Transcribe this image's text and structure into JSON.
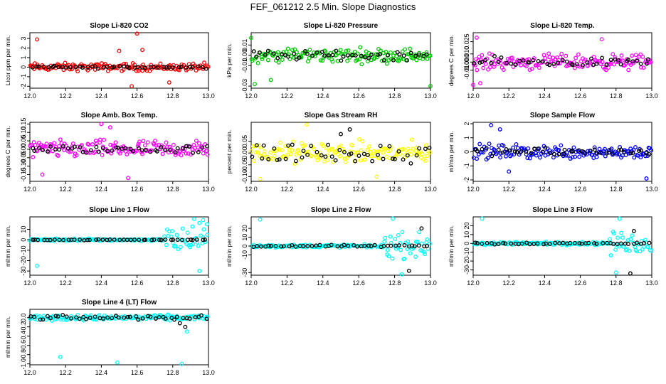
{
  "page": {
    "title": "FEF_061212  2.5 Min. Slope Diagnostics"
  },
  "chart_data": [
    {
      "type": "scatter",
      "title": "Slope Li-820 CO2",
      "xlabel": "",
      "ylabel": "Licor ppm per min.",
      "xlim": [
        12.0,
        13.0
      ],
      "ylim": [
        -2.2,
        3.6
      ],
      "ytick_values": [
        -2,
        -1,
        0,
        1,
        2,
        3
      ],
      "ytick_labels": [
        "-2",
        "-1",
        "0",
        "1",
        "2",
        "3"
      ],
      "xtick_values": [
        12.0,
        12.2,
        12.4,
        12.6,
        12.8,
        13.0
      ],
      "xtick_labels": [
        "12.0",
        "12.2",
        "12.4",
        "12.6",
        "12.8",
        "13.0"
      ],
      "grid": false,
      "legend": "none",
      "series": [
        {
          "color": "#ff0000",
          "center": 0.0,
          "spread": 0.35,
          "outliers": [
            [
              12.04,
              2.9
            ],
            [
              12.6,
              3.5
            ],
            [
              12.57,
              -2.0
            ],
            [
              12.78,
              -1.6
            ],
            [
              12.5,
              1.7
            ],
            [
              12.63,
              1.8
            ]
          ]
        },
        {
          "color": "#000000",
          "center": 0.0,
          "spread": 0.12,
          "outliers": []
        }
      ]
    },
    {
      "type": "scatter",
      "title": "Slope Li-820 Pressure",
      "xlabel": "",
      "ylabel": "kPa per min.",
      "xlim": [
        12.0,
        13.0
      ],
      "ylim": [
        -0.032,
        0.022
      ],
      "ytick_values": [
        -0.03,
        -0.01,
        0.0,
        0.01
      ],
      "ytick_labels": [
        "-0.03",
        "-0.01",
        "0.00",
        "0.01"
      ],
      "xtick_values": [
        12.0,
        12.2,
        12.4,
        12.6,
        12.8,
        13.0
      ],
      "xtick_labels": [
        "12.0",
        "12.2",
        "12.4",
        "12.6",
        "12.8",
        "13.0"
      ],
      "grid": false,
      "legend": "none",
      "series": [
        {
          "color": "#00cc00",
          "center": 0.0,
          "spread": 0.006,
          "outliers": [
            [
              12.0,
              0.017
            ],
            [
              12.02,
              -0.028
            ],
            [
              13.0,
              -0.03
            ],
            [
              12.11,
              -0.024
            ]
          ]
        },
        {
          "color": "#000000",
          "center": 0.0,
          "spread": 0.004,
          "outliers": []
        }
      ]
    },
    {
      "type": "scatter",
      "title": "Slope Li-820 Temp.",
      "xlabel": "",
      "ylabel": "degrees C per min.",
      "xlim": [
        12.0,
        13.0
      ],
      "ylim": [
        -0.032,
        0.036
      ],
      "ytick_values": [
        -0.01,
        0.0,
        0.01,
        0.025
      ],
      "ytick_labels": [
        "-0.010",
        "0.000",
        "0.010",
        "0.025"
      ],
      "xtick_values": [
        12.0,
        12.2,
        12.4,
        12.6,
        12.8,
        13.0
      ],
      "xtick_labels": [
        "12.0",
        "12.2",
        "12.4",
        "12.6",
        "12.8",
        "13.0"
      ],
      "grid": false,
      "legend": "none",
      "series": [
        {
          "color": "#ff00ff",
          "center": 0.0,
          "spread": 0.008,
          "outliers": [
            [
              12.02,
              0.03
            ],
            [
              12.0,
              -0.028
            ],
            [
              12.04,
              -0.026
            ],
            [
              12.72,
              0.028
            ]
          ]
        },
        {
          "color": "#000000",
          "center": 0.0,
          "spread": 0.005,
          "outliers": []
        }
      ]
    },
    {
      "type": "scatter",
      "title": "Slope Amb. Box Temp.",
      "xlabel": "",
      "ylabel": "degrees C per min.",
      "xlim": [
        12.0,
        13.0
      ],
      "ylim": [
        -0.19,
        0.16
      ],
      "ytick_values": [
        -0.15,
        -0.1,
        -0.05,
        0.0,
        0.05,
        0.1,
        0.15
      ],
      "ytick_labels": [
        "-0.15",
        "-0.10",
        "-0.05",
        "0.00",
        "0.05",
        "0.10",
        "0.15"
      ],
      "xtick_values": [
        12.0,
        12.2,
        12.4,
        12.6,
        12.8,
        13.0
      ],
      "xtick_labels": [
        "12.0",
        "12.2",
        "12.4",
        "12.6",
        "12.8",
        "13.0"
      ],
      "grid": false,
      "legend": "none",
      "series": [
        {
          "color": "#ff00ff",
          "center": 0.0,
          "spread": 0.045,
          "outliers": [
            [
              12.4,
              0.15
            ],
            [
              12.45,
              0.13
            ],
            [
              12.55,
              -0.17
            ],
            [
              12.07,
              -0.15
            ]
          ]
        },
        {
          "color": "#000000",
          "center": 0.0,
          "spread": 0.02,
          "outliers": []
        }
      ]
    },
    {
      "type": "scatter",
      "title": "Slope Gas Stream RH",
      "xlabel": "",
      "ylabel": "percent per min.",
      "xlim": [
        12.0,
        13.0
      ],
      "ylim": [
        -0.12,
        0.13
      ],
      "ytick_values": [
        -0.1,
        -0.05,
        0.0,
        0.05
      ],
      "ytick_labels": [
        "-0.10",
        "-0.05",
        "0.00",
        "0.05"
      ],
      "xtick_values": [
        12.0,
        12.2,
        12.4,
        12.6,
        12.8,
        13.0
      ],
      "xtick_labels": [
        "12.0",
        "12.2",
        "12.4",
        "12.6",
        "12.8",
        "13.0"
      ],
      "grid": false,
      "legend": "none",
      "series": [
        {
          "color": "#ffff00",
          "center": 0.0,
          "spread": 0.04,
          "outliers": [
            [
              12.31,
              0.12
            ],
            [
              12.05,
              -0.11
            ],
            [
              12.7,
              -0.1
            ]
          ]
        },
        {
          "color": "#000000",
          "center": 0.0,
          "spread": 0.04,
          "outliers": [
            [
              12.5,
              0.08
            ],
            [
              12.55,
              0.1
            ]
          ]
        }
      ]
    },
    {
      "type": "scatter",
      "title": "Slope Sample Flow",
      "xlabel": "",
      "ylabel": "ml/min per min.",
      "xlim": [
        12.0,
        13.0
      ],
      "ylim": [
        -2.1,
        2.1
      ],
      "ytick_values": [
        -2,
        -1,
        0,
        1,
        2
      ],
      "ytick_labels": [
        "-2",
        "-1",
        "0",
        "1",
        "2"
      ],
      "xtick_values": [
        12.0,
        12.2,
        12.4,
        12.6,
        12.8,
        13.0
      ],
      "xtick_labels": [
        "12.0",
        "12.2",
        "12.4",
        "12.6",
        "12.8",
        "13.0"
      ],
      "grid": false,
      "legend": "none",
      "series": [
        {
          "color": "#0000ff",
          "center": 0.0,
          "spread": 0.45,
          "outliers": [
            [
              12.1,
              1.9
            ],
            [
              12.15,
              1.6
            ],
            [
              12.97,
              -1.9
            ],
            [
              12.2,
              -1.4
            ]
          ]
        },
        {
          "color": "#000000",
          "center": 0.0,
          "spread": 0.25,
          "outliers": []
        }
      ]
    },
    {
      "type": "scatter",
      "title": "Slope Line 1 Flow",
      "xlabel": "",
      "ylabel": "ml/min per min.",
      "xlim": [
        12.0,
        13.0
      ],
      "ylim": [
        -34,
        22
      ],
      "ytick_values": [
        -30,
        -20,
        -10,
        0,
        10
      ],
      "ytick_labels": [
        "-30",
        "-20",
        "-10",
        "0",
        "10"
      ],
      "xtick_values": [
        12.0,
        12.2,
        12.4,
        12.6,
        12.8,
        13.0
      ],
      "xtick_labels": [
        "12.0",
        "12.2",
        "12.4",
        "12.6",
        "12.8",
        "13.0"
      ],
      "grid": false,
      "legend": "none",
      "series": [
        {
          "color": "#00ffff",
          "center": 0.0,
          "spread": 1.0,
          "noisy_from": 12.75,
          "noisy_spread": 12,
          "outliers": [
            [
              12.04,
              -25
            ],
            [
              12.95,
              -30
            ],
            [
              12.92,
              20
            ],
            [
              12.97,
              19
            ]
          ]
        },
        {
          "color": "#000000",
          "center": 0.0,
          "spread": 0.3,
          "outliers": []
        }
      ]
    },
    {
      "type": "scatter",
      "title": "Slope Line 2 Flow",
      "xlabel": "",
      "ylabel": "ml/min per min.",
      "xlim": [
        12.0,
        13.0
      ],
      "ylim": [
        -33,
        33
      ],
      "ytick_values": [
        -30,
        -10,
        0,
        10,
        20
      ],
      "ytick_labels": [
        "-30",
        "-10",
        "0",
        "10",
        "20"
      ],
      "xtick_values": [
        12.0,
        12.2,
        12.4,
        12.6,
        12.8,
        13.0
      ],
      "xtick_labels": [
        "12.0",
        "12.2",
        "12.4",
        "12.6",
        "12.8",
        "13.0"
      ],
      "grid": false,
      "legend": "none",
      "series": [
        {
          "color": "#00ffff",
          "center": 0.0,
          "spread": 1.5,
          "noisy_from": 12.74,
          "noisy_spread": 12,
          "outliers": [
            [
              12.05,
              30
            ],
            [
              12.79,
              31
            ],
            [
              12.84,
              -32
            ]
          ]
        },
        {
          "color": "#000000",
          "center": 0.0,
          "spread": 1.0,
          "outliers": [
            [
              12.95,
              20
            ],
            [
              12.88,
              -28
            ]
          ]
        }
      ]
    },
    {
      "type": "scatter",
      "title": "Slope Line 3 Flow",
      "xlabel": "",
      "ylabel": "ml/min per min.",
      "xlim": [
        12.0,
        13.0
      ],
      "ylim": [
        -36,
        30
      ],
      "ytick_values": [
        -30,
        -20,
        -10,
        0,
        10,
        20
      ],
      "ytick_labels": [
        "-30",
        "-20",
        "-10",
        "0",
        "10",
        "20"
      ],
      "xtick_values": [
        12.0,
        12.2,
        12.4,
        12.6,
        12.8,
        13.0
      ],
      "xtick_labels": [
        "12.0",
        "12.2",
        "12.4",
        "12.6",
        "12.8",
        "13.0"
      ],
      "grid": false,
      "legend": "none",
      "series": [
        {
          "color": "#00ffff",
          "center": 0.0,
          "spread": 1.5,
          "noisy_from": 12.76,
          "noisy_spread": 11,
          "outliers": [
            [
              12.05,
              28
            ],
            [
              12.82,
              28
            ],
            [
              12.8,
              -33
            ]
          ]
        },
        {
          "color": "#000000",
          "center": 0.0,
          "spread": 1.0,
          "outliers": [
            [
              12.88,
              -34
            ],
            [
              12.9,
              14
            ]
          ]
        }
      ]
    },
    {
      "type": "scatter",
      "title": "Slope Line 4 (LT) Flow",
      "xlabel": "",
      "ylabel": "ml/min per min.",
      "xlim": [
        12.0,
        13.0
      ],
      "ylim": [
        -1.02,
        0.18
      ],
      "ytick_values": [
        -1.0,
        -0.8,
        -0.6,
        -0.4,
        -0.2,
        0.0
      ],
      "ytick_labels": [
        "-1.0",
        "-0.8",
        "-0.6",
        "-0.4",
        "-0.2",
        "0.0"
      ],
      "xtick_values": [
        12.0,
        12.2,
        12.4,
        12.6,
        12.8,
        13.0
      ],
      "xtick_labels": [
        "12.0",
        "12.2",
        "12.4",
        "12.6",
        "12.8",
        "13.0"
      ],
      "grid": false,
      "legend": "none",
      "series": [
        {
          "color": "#00ffff",
          "center": 0.0,
          "spread": 0.05,
          "outliers": [
            [
              12.17,
              -0.85
            ],
            [
              12.49,
              -0.97
            ],
            [
              12.85,
              -1.0
            ],
            [
              12.88,
              -0.3
            ]
          ]
        },
        {
          "color": "#000000",
          "center": 0.0,
          "spread": 0.04,
          "outliers": [
            [
              12.84,
              -0.12
            ],
            [
              12.87,
              -0.2
            ]
          ]
        }
      ]
    }
  ]
}
